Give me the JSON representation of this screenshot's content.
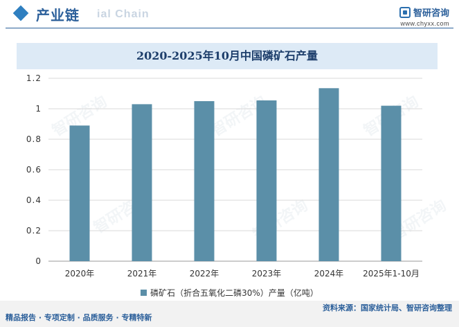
{
  "header": {
    "title": "产业链",
    "watermark": "ial Chain",
    "brand_name": "智研咨询",
    "brand_url": "www.chyxx.com",
    "logo_icon": "zhiyan-logo-icon"
  },
  "watermark_text": "智研咨询",
  "legend": {
    "label": "磷矿石（折合五氧化二磷30%）产量（亿吨）",
    "color": "#5b8fa8"
  },
  "footer": {
    "left": "精品报告 · 专项定制 · 品质服务 · 专精特新",
    "right": "资料来源：国家统计局、智研咨询整理"
  },
  "chart_data": {
    "type": "bar",
    "title": "2020-2025年10月中国磷矿石产量",
    "categories": [
      "2020年",
      "2021年",
      "2022年",
      "2023年",
      "2024年",
      "2025年1-10月"
    ],
    "series": [
      {
        "name": "磷矿石（折合五氧化二磷30%）产量（亿吨）",
        "values": [
          0.89,
          1.03,
          1.05,
          1.055,
          1.135,
          1.02
        ]
      }
    ],
    "y_ticks": [
      "0",
      "0.2",
      "0.4",
      "0.6",
      "0.8",
      "1",
      "1.2"
    ],
    "ylim": [
      0,
      1.2
    ],
    "grid": true,
    "legend_position": "bottom",
    "bar_color": "#5b8fa8"
  }
}
